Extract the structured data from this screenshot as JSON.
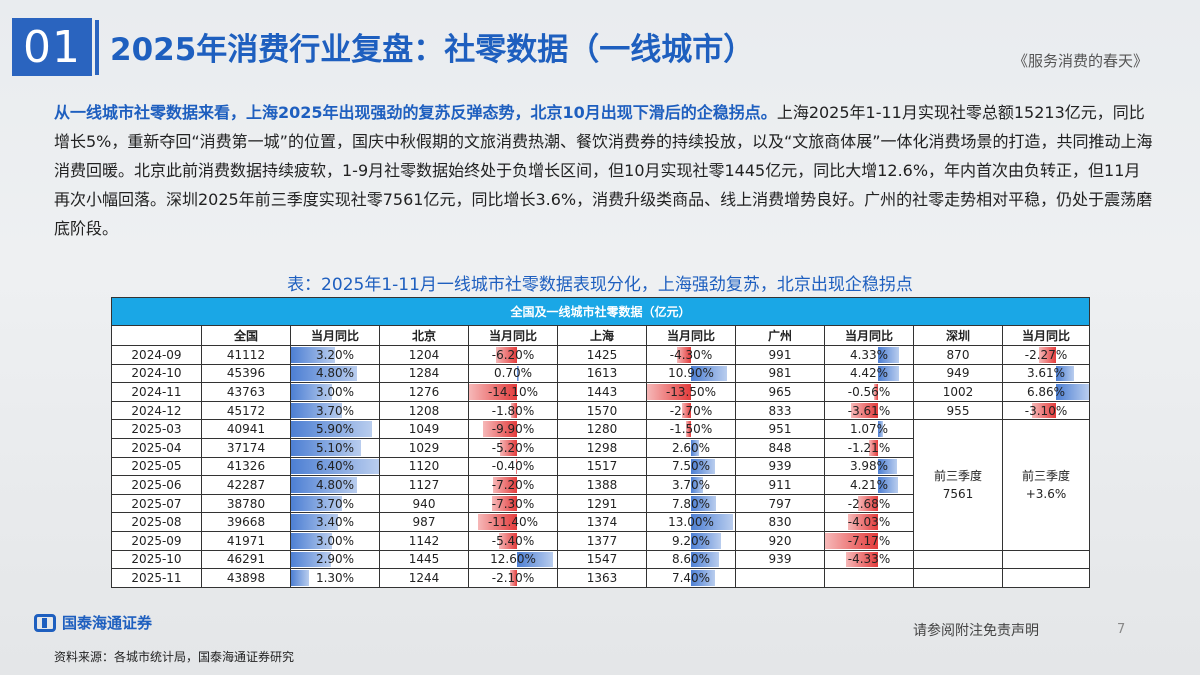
{
  "header": {
    "section_number": "01",
    "title": "2025年消费行业复盘：社零数据（一线城市）",
    "subtitle": "《服务消费的春天》"
  },
  "body": {
    "highlight": "从一线城市社零数据来看，上海2025年出现强劲的复苏反弹态势，北京10月出现下滑后的企稳拐点。",
    "text": "上海2025年1-11月实现社零总额15213亿元，同比增长5%，重新夺回“消费第一城”的位置，国庆中秋假期的文旅消费热潮、餐饮消费券的持续投放，以及“文旅商体展”一体化消费场景的打造，共同推动上海消费回暖。北京此前消费数据持续疲软，1-9月社零数据始终处于负增长区间，但10月实现社零1445亿元，同比大增12.6%，年内首次由负转正，但11月再次小幅回落。深圳2025年前三季度实现社零7561亿元，同比增长3.6%，消费升级类商品、线上消费增势良好。广州的社零走势相对平稳，仍处于震荡磨底阶段。"
  },
  "table": {
    "caption": "表：2025年1-11月一线城市社零数据表现分化，上海强劲复苏，北京出现企稳拐点",
    "banner": "全国及一线城市社零数据（亿元）",
    "headers": [
      "",
      "全国",
      "当月同比",
      "北京",
      "当月同比",
      "上海",
      "当月同比",
      "广州",
      "当月同比",
      "深圳",
      "当月同比"
    ],
    "rows": [
      {
        "month": "2024-09",
        "national": "41112",
        "national_yoy": "3.20%",
        "beijing": "1204",
        "beijing_yoy": "-6.20%",
        "shanghai": "1425",
        "shanghai_yoy": "-4.30%",
        "guangzhou": "991",
        "guangzhou_yoy": "4.33%",
        "shenzhen": "870",
        "shenzhen_yoy": "-2.27%"
      },
      {
        "month": "2024-10",
        "national": "45396",
        "national_yoy": "4.80%",
        "beijing": "1284",
        "beijing_yoy": "0.70%",
        "shanghai": "1613",
        "shanghai_yoy": "10.90%",
        "guangzhou": "981",
        "guangzhou_yoy": "4.42%",
        "shenzhen": "949",
        "shenzhen_yoy": "3.61%"
      },
      {
        "month": "2024-11",
        "national": "43763",
        "national_yoy": "3.00%",
        "beijing": "1276",
        "beijing_yoy": "-14.10%",
        "shanghai": "1443",
        "shanghai_yoy": "-13.50%",
        "guangzhou": "965",
        "guangzhou_yoy": "-0.56%",
        "shenzhen": "1002",
        "shenzhen_yoy": "6.86%"
      },
      {
        "month": "2024-12",
        "national": "45172",
        "national_yoy": "3.70%",
        "beijing": "1208",
        "beijing_yoy": "-1.80%",
        "shanghai": "1570",
        "shanghai_yoy": "-2.70%",
        "guangzhou": "833",
        "guangzhou_yoy": "-3.61%",
        "shenzhen": "955",
        "shenzhen_yoy": "-3.10%"
      },
      {
        "month": "2025-03",
        "national": "40941",
        "national_yoy": "5.90%",
        "beijing": "1049",
        "beijing_yoy": "-9.90%",
        "shanghai": "1280",
        "shanghai_yoy": "-1.50%",
        "guangzhou": "951",
        "guangzhou_yoy": "1.07%"
      },
      {
        "month": "2025-04",
        "national": "37174",
        "national_yoy": "5.10%",
        "beijing": "1029",
        "beijing_yoy": "-5.20%",
        "shanghai": "1298",
        "shanghai_yoy": "2.60%",
        "guangzhou": "848",
        "guangzhou_yoy": "-1.21%"
      },
      {
        "month": "2025-05",
        "national": "41326",
        "national_yoy": "6.40%",
        "beijing": "1120",
        "beijing_yoy": "-0.40%",
        "shanghai": "1517",
        "shanghai_yoy": "7.50%",
        "guangzhou": "939",
        "guangzhou_yoy": "3.98%"
      },
      {
        "month": "2025-06",
        "national": "42287",
        "national_yoy": "4.80%",
        "beijing": "1127",
        "beijing_yoy": "-7.20%",
        "shanghai": "1388",
        "shanghai_yoy": "3.70%",
        "guangzhou": "911",
        "guangzhou_yoy": "4.21%"
      },
      {
        "month": "2025-07",
        "national": "38780",
        "national_yoy": "3.70%",
        "beijing": "940",
        "beijing_yoy": "-7.30%",
        "shanghai": "1291",
        "shanghai_yoy": "7.80%",
        "guangzhou": "797",
        "guangzhou_yoy": "-2.68%"
      },
      {
        "month": "2025-08",
        "national": "39668",
        "national_yoy": "3.40%",
        "beijing": "987",
        "beijing_yoy": "-11.40%",
        "shanghai": "1374",
        "shanghai_yoy": "13.00%",
        "guangzhou": "830",
        "guangzhou_yoy": "-4.03%"
      },
      {
        "month": "2025-09",
        "national": "41971",
        "national_yoy": "3.00%",
        "beijing": "1142",
        "beijing_yoy": "-5.40%",
        "shanghai": "1377",
        "shanghai_yoy": "9.20%",
        "guangzhou": "920",
        "guangzhou_yoy": "-7.17%"
      },
      {
        "month": "2025-10",
        "national": "46291",
        "national_yoy": "2.90%",
        "beijing": "1445",
        "beijing_yoy": "12.60%",
        "shanghai": "1547",
        "shanghai_yoy": "8.60%",
        "guangzhou": "939",
        "guangzhou_yoy": "-4.33%"
      },
      {
        "month": "2025-11",
        "national": "43898",
        "national_yoy": "1.30%",
        "beijing": "1244",
        "beijing_yoy": "-2.10%",
        "shanghai": "1363",
        "shanghai_yoy": "7.40%",
        "guangzhou": "",
        "guangzhou_yoy": ""
      }
    ],
    "shenzhen_summary": {
      "value_label": "前三季度",
      "value": "7561",
      "yoy_label": "前三季度",
      "yoy": "+3.6%"
    }
  },
  "footer": {
    "logo_text": "国泰海通证券",
    "disclaimer": "请参阅附注免责声明",
    "page_number": "7",
    "source": "资料来源：各城市统计局，国泰海通证券研究"
  },
  "colors": {
    "accent": "#1e5fbf",
    "banner": "#1aa7e6",
    "positive_bar": "#4d7fd3",
    "negative_bar": "#e33b3b"
  }
}
